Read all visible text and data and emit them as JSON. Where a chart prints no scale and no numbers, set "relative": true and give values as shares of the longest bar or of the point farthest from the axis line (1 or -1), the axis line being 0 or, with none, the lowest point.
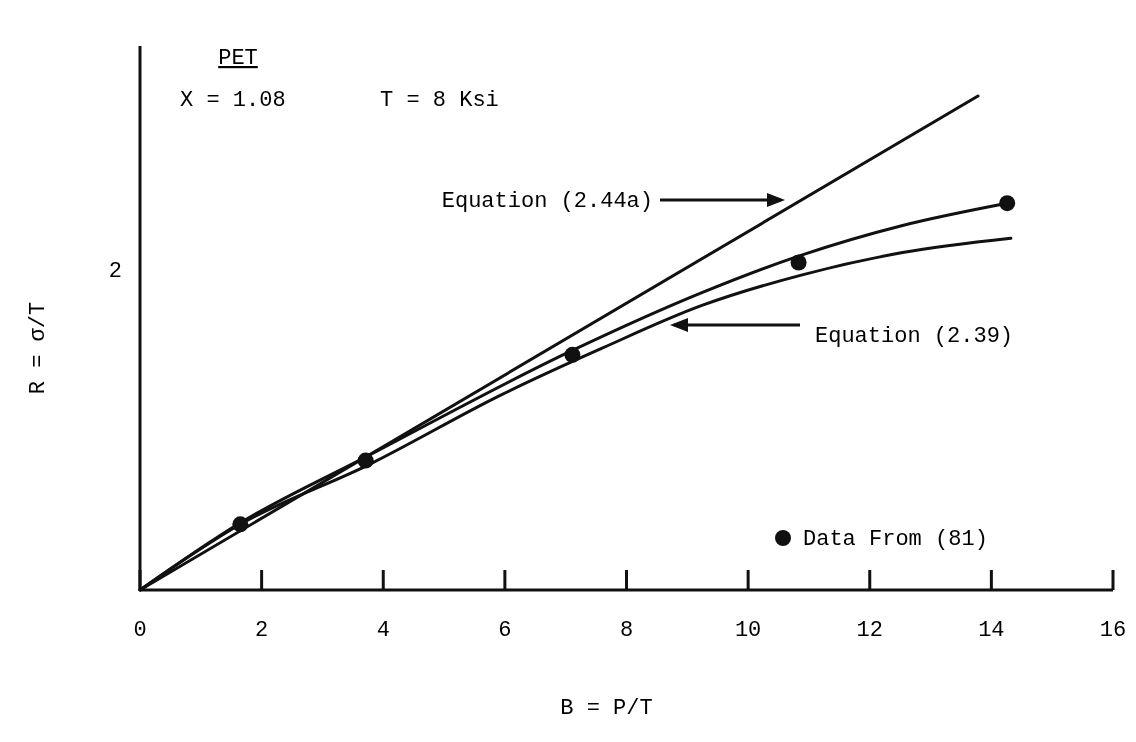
{
  "chart_data": {
    "type": "line",
    "title": "PET",
    "xlabel": "B = P/T",
    "ylabel": "R = σ/T",
    "annotations": [
      "X = 1.08",
      "T = 8 Ksi",
      "Equation (2.44a)",
      "Equation (2.39)",
      "2"
    ],
    "relative": true,
    "xlim": [
      0,
      16
    ],
    "xticks": [
      0,
      2,
      4,
      6,
      8,
      10,
      12,
      14,
      16
    ],
    "legend": "bottom right",
    "line_style": "solid",
    "series": [
      {
        "color": "#111111",
        "x": [
          0,
          13.78
        ],
        "values": [
          0,
          1
        ]
      },
      {
        "color": "#111111",
        "x": [
          0,
          1.65,
          3.71,
          7.11,
          9.24,
          10.83,
          12.54,
          14.26
        ],
        "values": [
          0,
          0.136,
          0.269,
          0.485,
          0.602,
          0.676,
          0.738,
          0.783
        ]
      },
      {
        "color": "#111111",
        "x": [
          0,
          1.65,
          3.8,
          5.94,
          7.59,
          9.24,
          10.89,
          12.54,
          14.32
        ],
        "values": [
          0,
          0.133,
          0.256,
          0.395,
          0.489,
          0.576,
          0.638,
          0.683,
          0.712
        ]
      },
      {
        "type": "scatter",
        "name": "Data From (81)",
        "color": "#111111",
        "marker": "circle",
        "x": [
          1.65,
          3.71,
          7.11,
          10.83,
          14.26
        ],
        "values": [
          0.133,
          0.262,
          0.476,
          0.663,
          0.783
        ]
      }
    ]
  }
}
